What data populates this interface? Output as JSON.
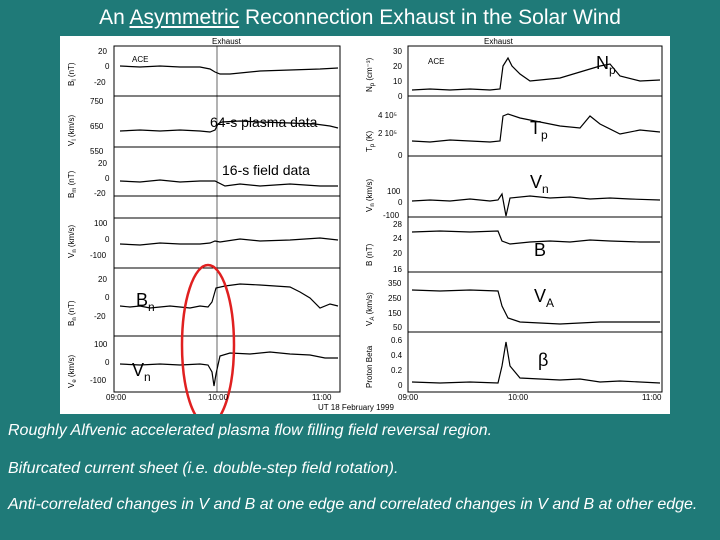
{
  "title": {
    "prefix": "An ",
    "underlined": "Asymmetric",
    "suffix": " Reconnection Exhaust in the Solar Wind"
  },
  "figure": {
    "left_header": "Exhaust",
    "right_header": "Exhaust",
    "left_spacecraft": "ACE",
    "right_spacecraft": "ACE",
    "note_plasma": "64-s plasma data",
    "note_field": "16-s field data",
    "time_axis_label": "UT 18 February 1999",
    "left_time_ticks": [
      "09:00",
      "10:00",
      "11:00"
    ],
    "right_time_ticks": [
      "09:00",
      "10:00",
      "11:00"
    ],
    "left_panels": [
      {
        "ylabel_main": "B",
        "ylabel_sub": "l",
        "ylabel_unit": "(nT)",
        "ticks": [
          "20",
          "0",
          "-20"
        ]
      },
      {
        "ylabel_main": "V",
        "ylabel_sub": "l",
        "ylabel_unit": "(km/s)",
        "ticks": [
          "750",
          "650",
          "550"
        ]
      },
      {
        "ylabel_main": "V",
        "ylabel_sub": "m",
        "ylabel_unit": "(km/s)",
        "ticks": [
          "650",
          "550"
        ]
      },
      {
        "ylabel_main": "B",
        "ylabel_sub": "m",
        "ylabel_unit": "(nT)",
        "ticks": [
          "20",
          "0",
          "-20"
        ]
      },
      {
        "ylabel_main": "V",
        "ylabel_sub": "n",
        "ylabel_unit": "(km/s)",
        "ticks": [
          "100",
          "0",
          "-100"
        ]
      },
      {
        "ylabel_main": "B",
        "ylabel_sub": "n",
        "ylabel_unit": "(nT)",
        "ticks": [
          "20",
          "0",
          "-20"
        ]
      },
      {
        "ylabel_main": "V",
        "ylabel_sub": "e",
        "ylabel_unit": "(km/s)",
        "ticks": [
          "100",
          "0",
          "-100"
        ]
      }
    ],
    "right_panels": [
      {
        "ylabel_main": "N",
        "ylabel_sub": "p",
        "ylabel_unit": "(cm⁻³)",
        "ticks": [
          "30",
          "20",
          "10",
          "0"
        ]
      },
      {
        "ylabel_main": "T",
        "ylabel_sub": "p",
        "ylabel_unit": "(K)",
        "ticks": [
          "4 10⁵",
          "2 10⁵",
          "0"
        ]
      },
      {
        "ylabel_main": "V",
        "ylabel_sub": "n",
        "ylabel_unit": "(km/s)",
        "ticks": [
          "100",
          "0",
          "-100"
        ]
      },
      {
        "ylabel_main": "B",
        "ylabel_sub": "",
        "ylabel_unit": "(nT)",
        "ticks": [
          "28",
          "24",
          "20",
          "16"
        ]
      },
      {
        "ylabel_main": "V",
        "ylabel_sub": "A",
        "ylabel_unit": "(km/s)",
        "ticks": [
          "350",
          "250",
          "150",
          "50"
        ]
      },
      {
        "ylabel_main": "Proton Beta",
        "ylabel_sub": "",
        "ylabel_unit": "",
        "ticks": [
          "0.6",
          "0.4",
          "0.2",
          "0"
        ]
      }
    ],
    "overlay_labels": {
      "np_main": "N",
      "np_sub": "p",
      "tp_main": "T",
      "tp_sub": "p",
      "vn_right_main": "V",
      "vn_right_sub": "n",
      "b_right": "B",
      "va_main": "V",
      "va_sub": "A",
      "beta": "β",
      "bn_left_main": "B",
      "bn_left_sub": "n",
      "vn_left_main": "V",
      "vn_left_sub": "n"
    },
    "highlight_color": "#e02020"
  },
  "captions": [
    "Roughly Alfvenic accelerated plasma flow filling field reversal region.",
    "Bifurcated current sheet (i.e. double-step field rotation).",
    "Anti-correlated changes in V and B at one edge and correlated changes in V and B at other edge."
  ],
  "colors": {
    "background": "#1f7a78",
    "text": "#ffffff",
    "trace": "#000000"
  }
}
